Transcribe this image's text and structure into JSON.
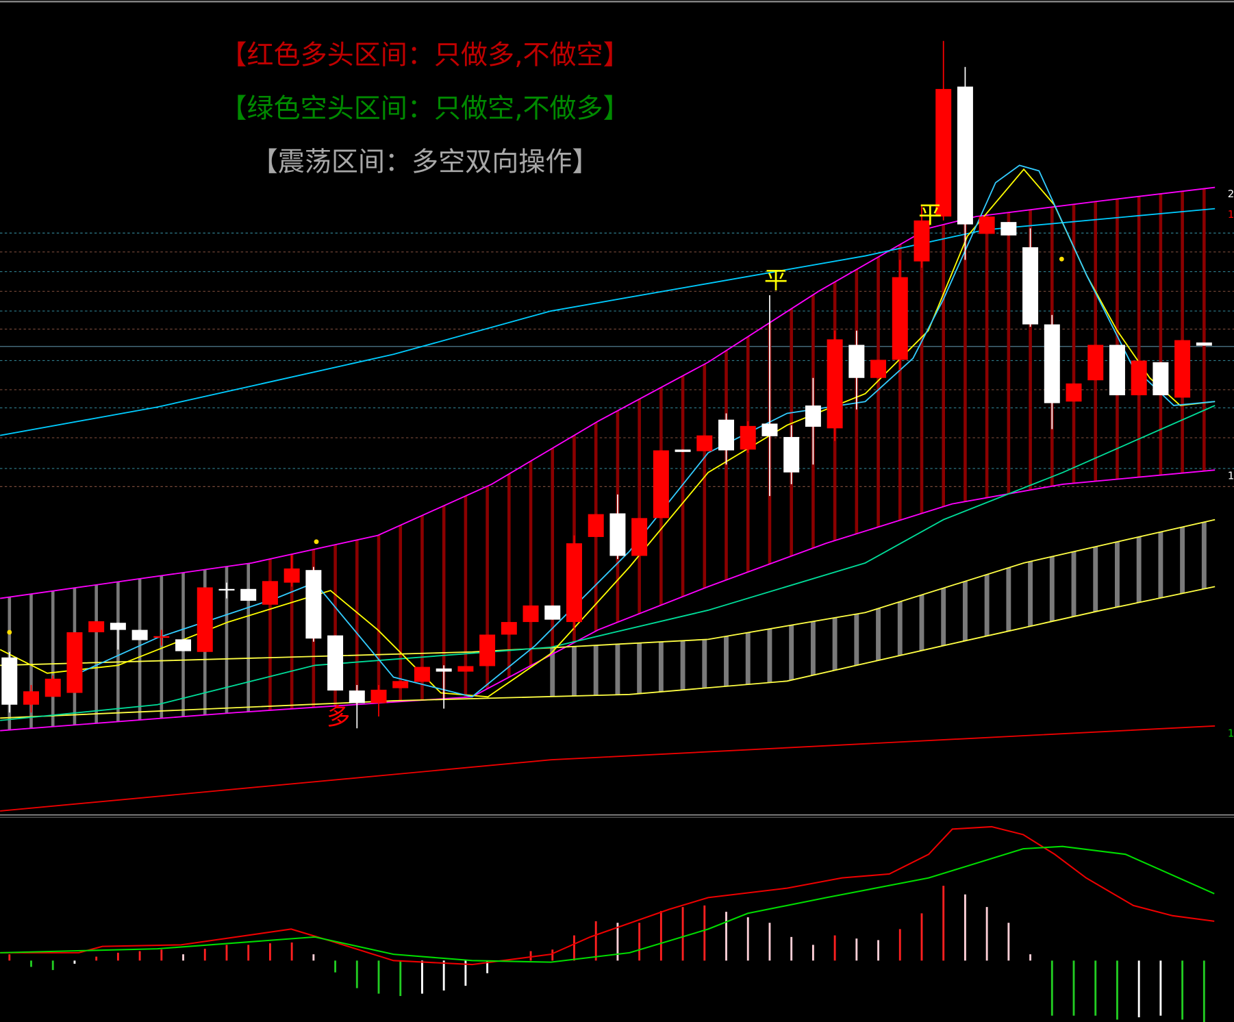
{
  "chart_data": [
    {
      "type": "candlestick",
      "annotations": [
        {
          "text": "【红色多头区间：只做多,不做空】",
          "color": "#c00000"
        },
        {
          "text": "【绿色空头区间：只做空,不做多】",
          "color": "#008a00"
        },
        {
          "text": "【震荡区间：多空双向操作】",
          "color": "#a8a8a8"
        },
        {
          "text": "平",
          "color": "#ffff00"
        },
        {
          "text": "平",
          "color": "#ffff00"
        },
        {
          "text": "多",
          "color": "#ff0000"
        }
      ],
      "right_edge_labels": [
        {
          "text": "2",
          "color": "#ffffff"
        },
        {
          "text": "1",
          "color": "#ff0000"
        },
        {
          "text": "1",
          "color": "#ffffff"
        },
        {
          "text": "1",
          "color": "#00cc00"
        }
      ],
      "categories": [
        null,
        null,
        null,
        null,
        null,
        null,
        null,
        null,
        null,
        null,
        null,
        null,
        null,
        null,
        null,
        null,
        null,
        null,
        null,
        null,
        null,
        null,
        null,
        null,
        null,
        null,
        null,
        null,
        null,
        null,
        null,
        null,
        null,
        null,
        null,
        null,
        null,
        null,
        null,
        null,
        null,
        null,
        null,
        null,
        null,
        null,
        null,
        null,
        null,
        null,
        null,
        null,
        null,
        null,
        null,
        null
      ],
      "open": [
        20.0,
        14.0,
        15.0,
        15.5,
        23.2,
        24.4,
        23.5,
        22.5,
        22.3,
        20.7,
        28.7,
        28.7,
        26.7,
        29.5,
        31.1,
        22.8,
        15.8,
        14.2,
        16.1,
        16.9,
        18.6,
        18.2,
        18.9,
        22.9,
        24.5,
        26.6,
        24.5,
        35.3,
        38.3,
        32.9,
        37.7,
        46.4,
        46.2,
        50.2,
        46.4,
        49.7,
        48.0,
        52.0,
        49.1,
        59.7,
        55.5,
        57.8,
        70.3,
        76.0,
        92.5,
        73.8,
        75.3,
        72.1,
        62.3,
        52.5,
        55.2,
        59.7,
        53.3,
        57.5,
        53.0,
        60.0
      ],
      "high": [
        20.7,
        16.5,
        17.7,
        23.2,
        24.6,
        24.4,
        23.5,
        23.5,
        22.3,
        28.9,
        29.5,
        28.7,
        29.7,
        33.0,
        31.5,
        22.8,
        16.5,
        16.5,
        17.0,
        18.8,
        19.0,
        18.9,
        22.9,
        24.5,
        26.6,
        26.6,
        35.5,
        38.2,
        40.7,
        37.7,
        46.3,
        46.4,
        48.2,
        51.0,
        50.0,
        66.0,
        49.5,
        55.5,
        61.5,
        61.5,
        57.8,
        70.5,
        77.5,
        98.3,
        95.0,
        76.0,
        75.3,
        74.5,
        63.5,
        54.8,
        59.7,
        59.7,
        57.7,
        57.5,
        60.3,
        60.0
      ],
      "low": [
        13.0,
        13.0,
        15.0,
        15.5,
        23.2,
        21.0,
        22.2,
        21.5,
        20.8,
        20.7,
        27.5,
        27.2,
        26.7,
        29.0,
        22.0,
        15.8,
        11.0,
        12.5,
        16.1,
        16.9,
        13.5,
        18.2,
        18.9,
        22.9,
        24.5,
        24.8,
        23.5,
        35.3,
        32.5,
        32.9,
        37.7,
        46.1,
        46.2,
        44.5,
        46.0,
        40.5,
        42.0,
        44.5,
        47.5,
        51.5,
        55.5,
        56.5,
        69.5,
        75.5,
        70.5,
        73.8,
        73.6,
        62.0,
        49.0,
        52.5,
        55.2,
        53.3,
        53.3,
        53.3,
        53.0,
        59.6
      ],
      "close": [
        14.0,
        15.7,
        17.3,
        23.2,
        24.6,
        23.5,
        22.2,
        22.7,
        20.8,
        28.9,
        28.5,
        27.2,
        29.7,
        31.3,
        22.4,
        15.8,
        14.2,
        15.9,
        17.0,
        18.8,
        18.2,
        18.9,
        22.9,
        24.5,
        26.6,
        24.8,
        34.5,
        38.2,
        32.9,
        37.7,
        46.3,
        46.1,
        48.2,
        46.3,
        49.4,
        48.1,
        43.5,
        49.3,
        60.4,
        55.5,
        57.8,
        68.3,
        75.5,
        92.2,
        75.0,
        76.0,
        73.6,
        62.3,
        52.3,
        54.8,
        59.7,
        53.3,
        57.7,
        53.3,
        60.3,
        59.6
      ],
      "up_color": "#ff0000",
      "down_color": "#ffffff",
      "ylim": [
        0,
        103.5
      ],
      "lines": [
        {
          "color": "#ff00ff",
          "x": [
            -0.43,
            11.16,
            16.96,
            22.2,
            27.1,
            32.17,
            37.25,
            42.3,
            44.5,
            50.3,
            55.5
          ],
          "values": [
            27.5,
            32.0,
            35.5,
            42.0,
            50.0,
            57.5,
            66.5,
            74.5,
            76.0,
            78.0,
            79.7
          ]
        },
        {
          "color": "#ff00ff",
          "x": [
            -0.43,
            10.43,
            21.3,
            27.1,
            32.17,
            37.6,
            43.4,
            48.5,
            55.5
          ],
          "values": [
            10.7,
            13.0,
            15.0,
            23.5,
            29.0,
            34.5,
            39.5,
            42.0,
            43.8
          ]
        },
        {
          "color": "#00ccff",
          "x": [
            -0.43,
            6.81,
            17.68,
            24.93,
            32.17,
            39.4,
            44.9,
            55.5
          ],
          "values": [
            48.2,
            51.8,
            58.5,
            64.0,
            67.5,
            71.0,
            74.3,
            77.0
          ]
        },
        {
          "color": "#ee0000",
          "x": [
            -0.43,
            24.93,
            55.5
          ],
          "values": [
            0.5,
            7.0,
            11.3
          ]
        },
        {
          "color": "#ffff44",
          "x": [
            -0.43,
            21.3,
            32.17,
            39.4,
            46.7,
            55.5
          ],
          "values": [
            19.0,
            20.7,
            22.3,
            25.7,
            32.0,
            37.5
          ]
        },
        {
          "color": "#ffff44",
          "x": [
            -0.43,
            17.68,
            28.55,
            35.8,
            43.0,
            50.3,
            55.5
          ],
          "values": [
            12.3,
            14.5,
            15.3,
            17.0,
            21.5,
            26.0,
            29.0
          ]
        },
        {
          "color": "#00dd99",
          "x": [
            -0.43,
            6.81,
            14.06,
            24.93,
            32.17,
            39.4,
            43.0,
            48.5,
            55.5
          ],
          "values": [
            12.0,
            14.0,
            19.0,
            21.3,
            26.0,
            32.0,
            37.5,
            43.5,
            52.0
          ]
        },
        {
          "color": "#ffff00",
          "x": [
            -0.43,
            1.74,
            5.0,
            10.07,
            14.78,
            16.96,
            19.86,
            22.03,
            24.93,
            28.55,
            32.17,
            35.8,
            39.4,
            42.3,
            44.1,
            46.7,
            48.1,
            49.6,
            51.0,
            52.5,
            53.9,
            55.5
          ],
          "values": [
            21.0,
            18.0,
            19.0,
            24.5,
            28.5,
            23.5,
            15.5,
            15.0,
            20.5,
            31.5,
            43.5,
            49.5,
            53.5,
            61.5,
            73.5,
            82.0,
            77.5,
            68.5,
            61.5,
            55.5,
            52.0,
            52.5
          ]
        },
        {
          "color": "#33ccff",
          "x": [
            3.19,
            6.81,
            12.25,
            14.06,
            17.68,
            21.3,
            24.2,
            28.55,
            32.17,
            35.8,
            39.4,
            41.6,
            43.0,
            45.4,
            46.5,
            47.4,
            49.6,
            51.7,
            53.6,
            55.5
          ],
          "values": [
            18.0,
            22.5,
            27.5,
            29.5,
            17.5,
            15.0,
            21.5,
            33.5,
            46.0,
            51.0,
            52.5,
            58.0,
            65.5,
            80.3,
            82.5,
            81.8,
            68.5,
            57.0,
            52.0,
            52.5
          ]
        }
      ]
    },
    {
      "type": "macd",
      "values": [
        0.8,
        -0.8,
        -1.2,
        -0.4,
        0.5,
        1.0,
        1.2,
        1.4,
        0.8,
        1.5,
        2.0,
        2.0,
        2.2,
        2.3,
        0.8,
        -1.5,
        -3.5,
        -4.2,
        -4.5,
        -4.2,
        -3.8,
        -3.2,
        -1.6,
        0.0,
        1.2,
        1.4,
        3.2,
        5.0,
        4.8,
        4.8,
        6.3,
        6.8,
        7.0,
        6.2,
        5.5,
        4.8,
        3.0,
        2.0,
        3.2,
        2.8,
        2.6,
        4.0,
        6.0,
        9.5,
        8.4,
        6.8,
        4.8,
        0.8,
        -7.0,
        -7.0,
        -7.0,
        -7.5,
        -7.2,
        -7.0,
        -7.5,
        -7.8
      ],
      "ylim": [
        -7.8,
        18.2
      ],
      "lines": [
        {
          "color": "#ee0000",
          "x": [
            -0.43,
            3.19,
            4.28,
            7.9,
            12.97,
            14.78,
            17.68,
            21.3,
            24.93,
            26.74,
            30.36,
            32.17,
            35.8,
            38.33,
            40.51,
            42.32,
            43.41,
            45.22,
            46.67,
            48.12,
            49.57,
            51.74,
            53.55,
            55.47
          ],
          "values": [
            1.0,
            1.0,
            1.8,
            2.0,
            4.0,
            2.5,
            0.0,
            -0.5,
            0.8,
            3.0,
            6.5,
            8.0,
            9.2,
            10.5,
            11.0,
            13.5,
            16.7,
            17.0,
            16.0,
            13.5,
            10.5,
            7.0,
            5.7,
            5.0
          ]
        },
        {
          "color": "#00dd00",
          "x": [
            -0.43,
            6.81,
            14.06,
            17.68,
            21.3,
            24.93,
            28.55,
            32.17,
            33.99,
            37.61,
            42.32,
            46.67,
            48.48,
            51.38,
            55.47
          ],
          "values": [
            1.0,
            1.5,
            3.0,
            0.8,
            0.0,
            -0.2,
            1.0,
            4.0,
            6.0,
            8.0,
            10.5,
            14.2,
            14.5,
            13.5,
            8.5
          ]
        }
      ]
    }
  ]
}
